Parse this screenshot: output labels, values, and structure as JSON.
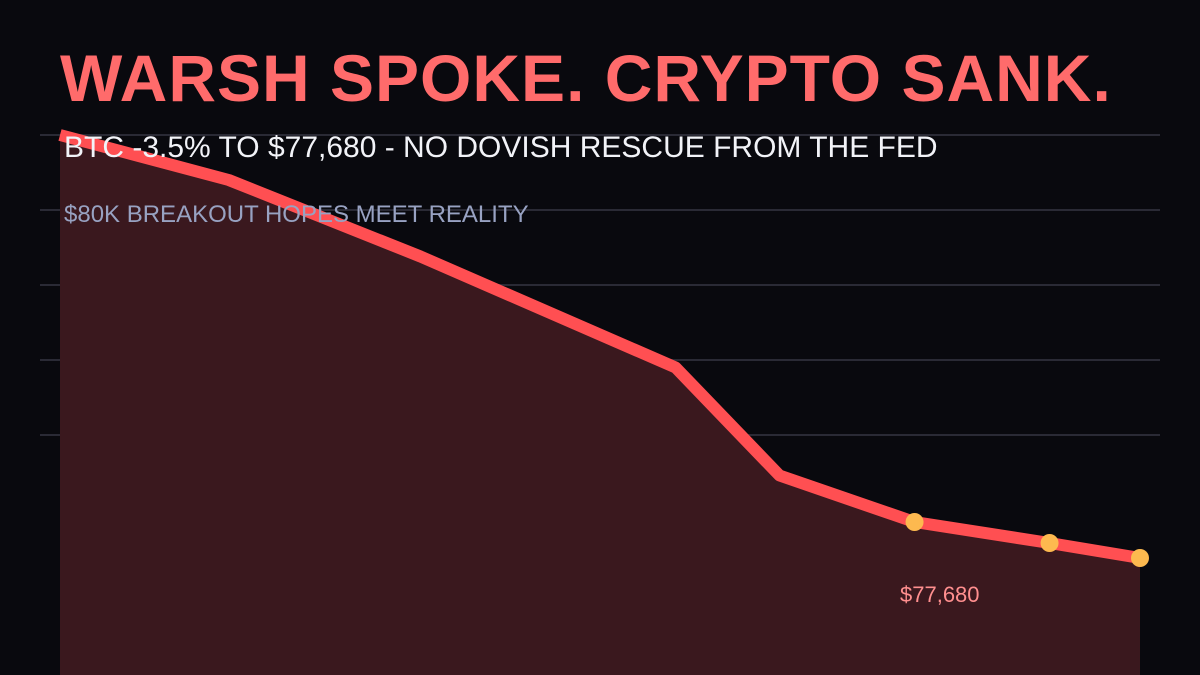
{
  "header": {
    "headline": "WARSH SPOKE. CRYPTO SANK.",
    "subtitle": "BTC -3.5% TO $77,680 - NO DOVISH RESCUE FROM THE FED",
    "tagline": "$80K BREAKOUT HOPES MEET REALITY"
  },
  "colors": {
    "background": "#09090e",
    "headline": "#ff6b6b",
    "subtitle": "#f2f3f8",
    "tagline": "#98a2c2",
    "line": "#ff4f52",
    "area_fill": "#3a181e",
    "marker": "#fdb94f",
    "value_label": "#ff8f8f",
    "grid": "#2a2a35"
  },
  "chart_data": {
    "type": "area",
    "x": [
      0,
      1,
      2,
      3,
      4,
      5,
      6,
      7,
      8
    ],
    "values": [
      80500,
      80200,
      79690,
      78950,
      78230,
      77920,
      77780,
      77680
    ],
    "x_values": [
      0,
      1.25,
      2.67,
      4.56,
      5.33,
      6.33,
      7.33,
      8
    ],
    "highlight_points": [
      5,
      6,
      7
    ],
    "ylim": [
      76900,
      81000
    ],
    "xlim": [
      0,
      8
    ],
    "y_gridlines": [
      80500,
      80000,
      79500,
      79000,
      78500
    ],
    "grid": true,
    "annotations": [
      {
        "text": "$77,680",
        "point": 7
      }
    ]
  }
}
